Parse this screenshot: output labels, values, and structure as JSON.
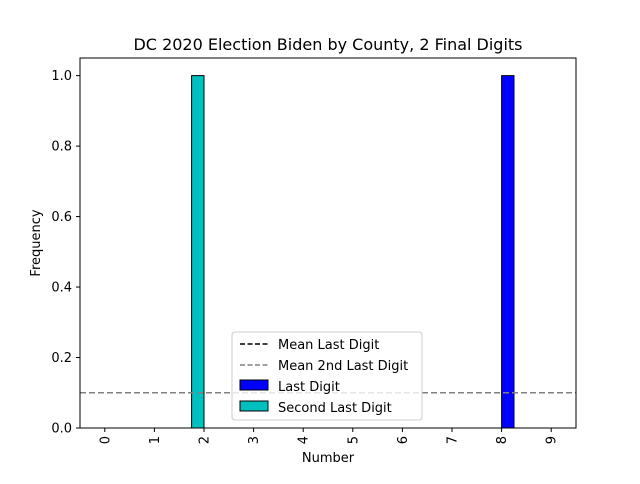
{
  "chart_data": {
    "type": "bar",
    "title": "DC 2020 Election Biden by County, 2 Final Digits",
    "xlabel": "Number",
    "ylabel": "Frequency",
    "categories": [
      "0",
      "1",
      "2",
      "3",
      "4",
      "5",
      "6",
      "7",
      "8",
      "9"
    ],
    "ylim": [
      0,
      1.05
    ],
    "yticks": [
      "0.0",
      "0.2",
      "0.4",
      "0.6",
      "0.8",
      "1.0"
    ],
    "grid": false,
    "legend_position": "bottom-center",
    "series": [
      {
        "name": "Last Digit",
        "color": "#0000ff",
        "values": [
          0,
          0,
          0,
          0,
          0,
          0,
          0,
          0,
          1.0,
          0
        ]
      },
      {
        "name": "Second Last Digit",
        "color": "#00bfbf",
        "values": [
          0,
          0,
          1.0,
          0,
          0,
          0,
          0,
          0,
          0,
          0
        ]
      }
    ],
    "reference_lines": [
      {
        "name": "Mean Last Digit",
        "value": 0.1,
        "color": "#000000",
        "style": "dashed"
      },
      {
        "name": "Mean 2nd Last Digit",
        "value": 0.1,
        "color": "#808080",
        "style": "dashed"
      }
    ]
  }
}
